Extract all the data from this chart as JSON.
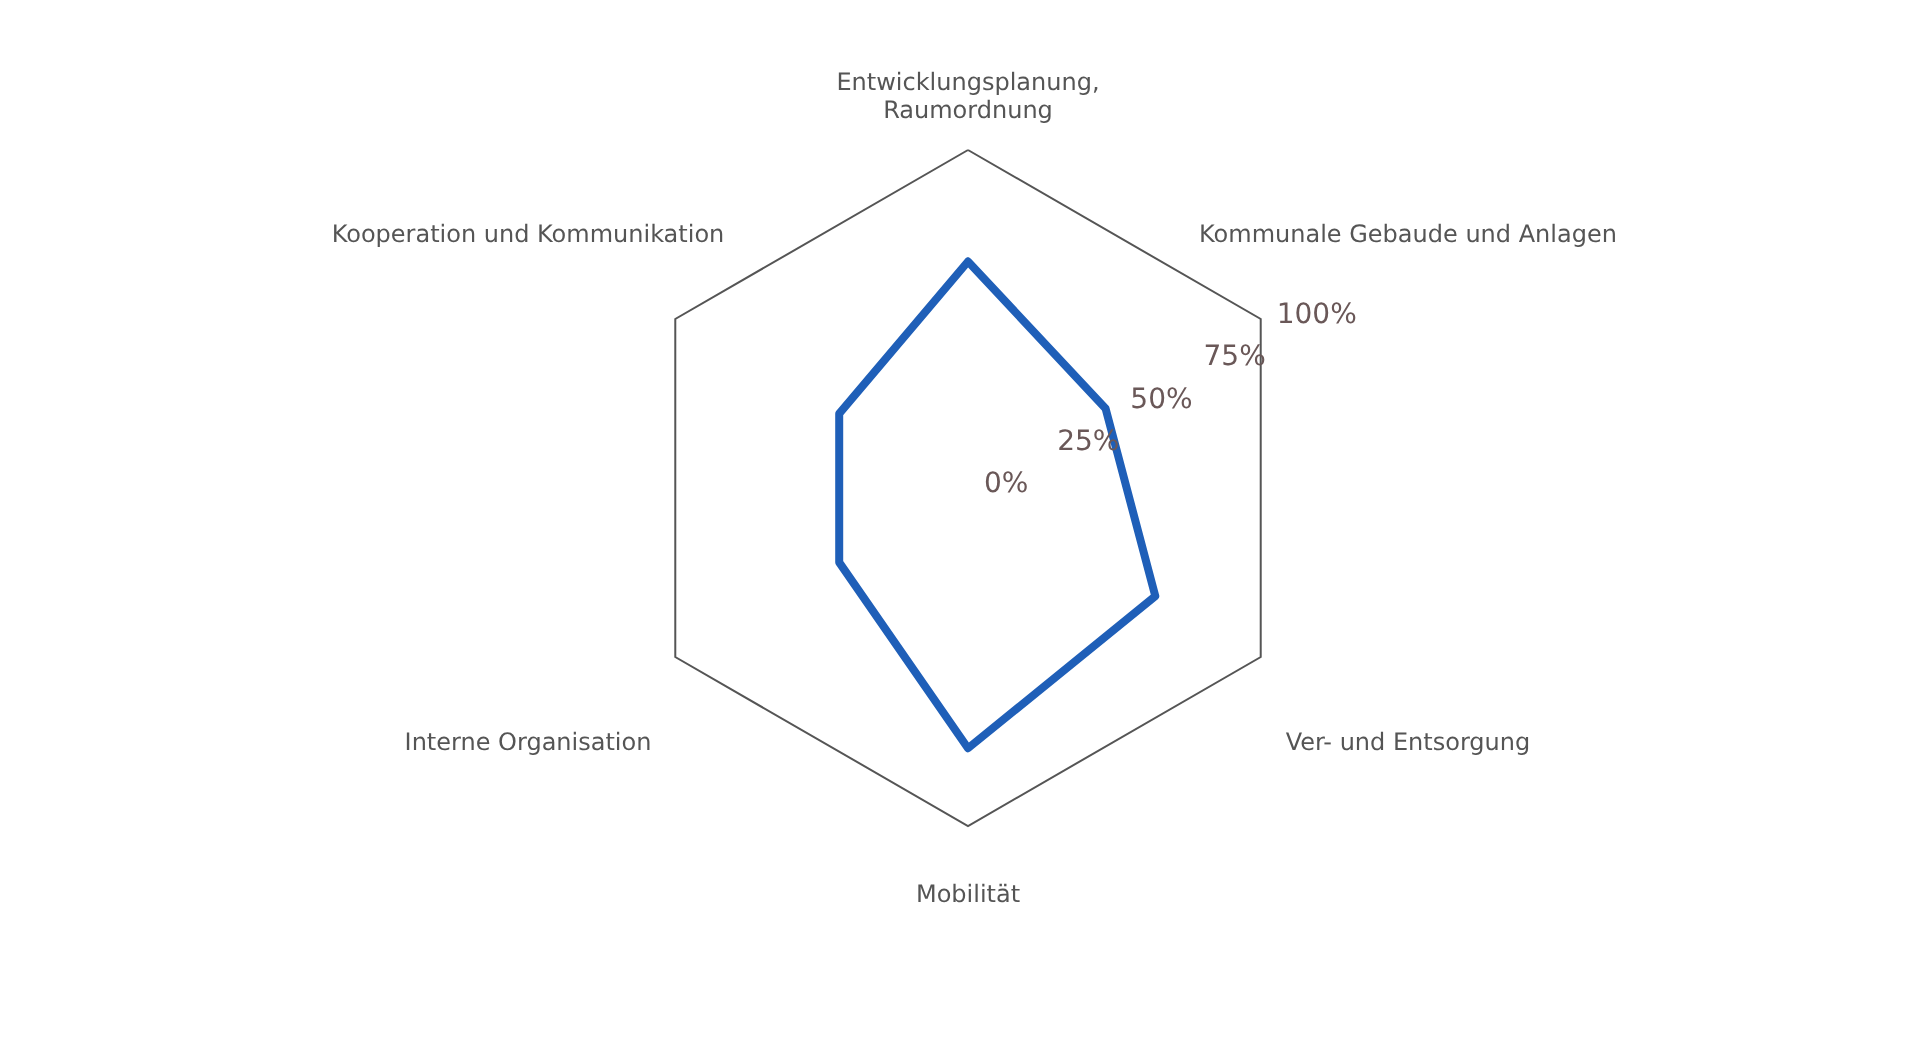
{
  "chart_data": {
    "type": "radar",
    "categories": [
      "Entwicklungsplanung,\nRaumordnung",
      "Kommunale Gebaude und Anlagen",
      "Ver- und Entsorgung",
      "Mobilität",
      "Interne Organisation",
      "Kooperation und Kommunikation"
    ],
    "series": [
      {
        "color": "#1f5fb8",
        "values": [
          67,
          47,
          64,
          77,
          44,
          44
        ]
      }
    ],
    "ylim": [
      0,
      100
    ],
    "yticks": [
      {
        "value": 0,
        "label": "0%"
      },
      {
        "value": 25,
        "label": "25%"
      },
      {
        "value": 50,
        "label": "50%"
      },
      {
        "value": 75,
        "label": "75%"
      },
      {
        "value": 100,
        "label": "100%"
      }
    ]
  }
}
